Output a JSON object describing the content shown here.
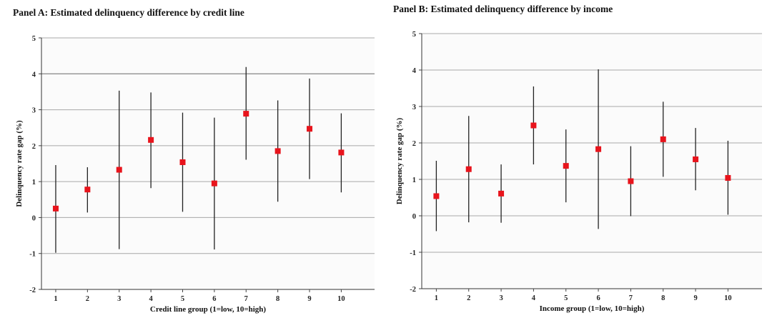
{
  "panels": [
    {
      "title": "Panel A: Estimated delinquency difference by credit line",
      "chart_data": {
        "type": "scatter",
        "title": "Panel A: Estimated delinquency difference by credit line",
        "xlabel": "Credit line group (1=low, 10=high)",
        "ylabel": "Delinquency rate gap (%)",
        "categories": [
          "1",
          "2",
          "3",
          "4",
          "5",
          "6",
          "7",
          "8",
          "9",
          "10"
        ],
        "estimates": [
          0.25,
          0.78,
          1.33,
          2.16,
          1.54,
          0.95,
          2.89,
          1.85,
          2.47,
          1.81
        ],
        "ci_low": [
          -0.98,
          0.14,
          -0.88,
          0.82,
          0.16,
          -0.89,
          1.61,
          0.44,
          1.07,
          0.7
        ],
        "ci_high": [
          1.46,
          1.4,
          3.53,
          3.48,
          2.92,
          2.78,
          4.19,
          3.26,
          3.87,
          2.9
        ],
        "ylim": [
          -2,
          5
        ],
        "yticks": [
          "-2",
          "-1",
          "0",
          "1",
          "2",
          "3",
          "4",
          "5"
        ],
        "grid": true,
        "marker_color": "#e8141c"
      }
    },
    {
      "title": "Panel B: Estimated delinquency difference by income",
      "chart_data": {
        "type": "scatter",
        "title": "Panel B: Estimated delinquency difference by income",
        "xlabel": "Income group (1=low, 10=high)",
        "ylabel": "Delinquency rate gap (%)",
        "categories": [
          "1",
          "2",
          "3",
          "4",
          "5",
          "6",
          "7",
          "8",
          "9",
          "10"
        ],
        "estimates": [
          0.54,
          1.28,
          0.61,
          2.48,
          1.37,
          1.83,
          0.95,
          2.1,
          1.55,
          1.04
        ],
        "ci_low": [
          -0.42,
          -0.18,
          -0.19,
          1.41,
          0.37,
          -0.36,
          -0.01,
          1.07,
          0.7,
          0.03
        ],
        "ci_high": [
          1.51,
          2.74,
          1.41,
          3.55,
          2.37,
          4.02,
          1.91,
          3.13,
          2.41,
          2.06
        ],
        "ylim": [
          -2,
          5
        ],
        "yticks": [
          "-2",
          "-1",
          "0",
          "1",
          "2",
          "3",
          "4",
          "5"
        ],
        "grid": true,
        "marker_color": "#e8141c"
      }
    }
  ]
}
